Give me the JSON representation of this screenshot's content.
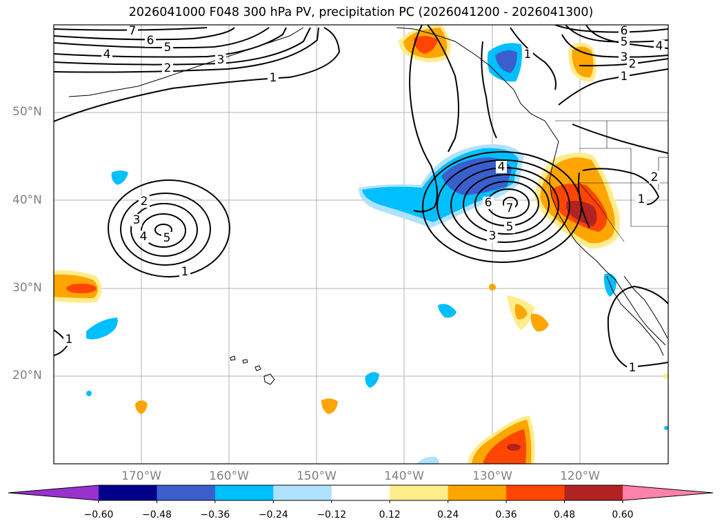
{
  "title": "2026041000 F048 300 hPa PV, precipitation PC (2026041200 - 2026041300)",
  "map": {
    "lat_labels": [
      "50°N",
      "40°N",
      "30°N",
      "20°N"
    ],
    "lon_labels": [
      "170°W",
      "160°W",
      "150°W",
      "140°W",
      "130°W",
      "120°W"
    ]
  },
  "contour_labels": {
    "upper_left": [
      "7",
      "6",
      "5",
      "4",
      "3",
      "2",
      "1"
    ],
    "upper_right": [
      "6",
      "5",
      "4",
      "3",
      "2",
      "1",
      "1"
    ],
    "west_low": [
      "2",
      "3",
      "4",
      "5",
      "1"
    ],
    "east_low": [
      "4",
      "6",
      "7",
      "5",
      "3"
    ],
    "misc": [
      "1",
      "2",
      "1",
      "1"
    ]
  },
  "colorbar": {
    "labels": [
      "−0.60",
      "−0.48",
      "−0.36",
      "−0.24",
      "−0.12",
      "0.12",
      "0.24",
      "0.36",
      "0.48",
      "0.60"
    ],
    "colors": [
      "#9932cc",
      "#00008b",
      "#3a5fcd",
      "#00bfff",
      "#b0e2ff",
      "#ffffff",
      "#ffec8b",
      "#ffa500",
      "#ff4500",
      "#b22222",
      "#ff82ab"
    ]
  }
}
